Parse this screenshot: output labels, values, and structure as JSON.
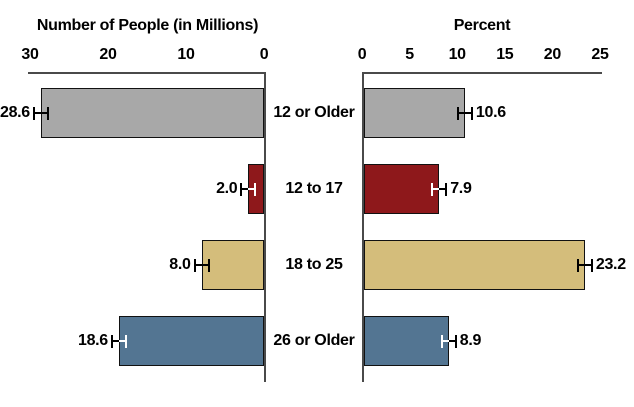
{
  "chart_data": {
    "type": "bar",
    "orientation": "horizontal-diverging",
    "grid": false,
    "legend": false,
    "background": "#ffffff",
    "categories": [
      "12 or Older",
      "12 to 17",
      "18 to 25",
      "26 or Older"
    ],
    "series": [
      {
        "name": "Number of People (in Millions)",
        "side": "left",
        "direction": "right-to-left",
        "values": [
          28.6,
          2.0,
          8.0,
          18.6
        ],
        "value_labels": [
          "28.6",
          "2.0",
          "8.0",
          "18.6"
        ],
        "axis_ticks": [
          "30",
          "20",
          "10",
          "0"
        ],
        "xlim": [
          0,
          30
        ]
      },
      {
        "name": "Percent",
        "side": "right",
        "direction": "left-to-right",
        "values": [
          10.6,
          7.9,
          23.2,
          8.9
        ],
        "value_labels": [
          "10.6",
          "7.9",
          "23.2",
          "8.9"
        ],
        "axis_ticks": [
          "0",
          "5",
          "10",
          "15",
          "20",
          "25"
        ],
        "xlim": [
          0,
          25
        ]
      }
    ],
    "bar_colors": [
      "#a8a8a8",
      "#8e181b",
      "#d4bd7b",
      "#537592"
    ],
    "bar_border_color": "#111111",
    "axis_color": "#4a4a4a",
    "has_error_bars": true,
    "error_bar_outer_color": "#000000",
    "error_bar_inner_colors": [
      "#000000",
      "#ffffff",
      "#000000",
      "#ffffff"
    ]
  }
}
